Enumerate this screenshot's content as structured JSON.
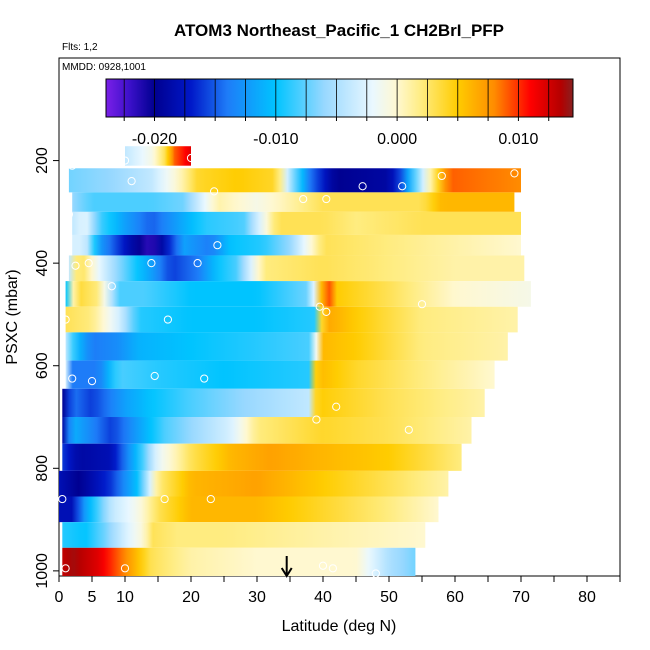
{
  "chart_data": {
    "type": "heatmap",
    "title": "ATOM3 Northeast_Pacific_1 CH2BrI_PFP",
    "flights_label": "Flts: 1,2",
    "dates_label": "MMDD: 0928,1001",
    "xlabel": "Latitude (deg N)",
    "ylabel": "PSXC (mbar)",
    "xlim": [
      0,
      85
    ],
    "ylim": [
      1010,
      0
    ],
    "x_ticks": [
      0,
      5,
      10,
      20,
      30,
      40,
      50,
      60,
      70,
      80
    ],
    "x_minor_ticks": [
      15,
      25,
      35,
      45,
      55,
      65,
      75,
      85
    ],
    "y_ticks": [
      200,
      400,
      600,
      800,
      1000
    ],
    "colorbar": {
      "range": [
        -0.024,
        0.0145
      ],
      "ticks": [
        -0.02,
        -0.01,
        0.0,
        0.01
      ],
      "tick_labels": [
        "-0.020",
        "-0.010",
        "0.000",
        "0.010"
      ],
      "minor_ticks": [
        -0.015,
        -0.005,
        0.005
      ],
      "stops": [
        {
          "v": -0.024,
          "c": "#7a20e8"
        },
        {
          "v": -0.022,
          "c": "#3a10c8"
        },
        {
          "v": -0.02,
          "c": "#000090"
        },
        {
          "v": -0.017,
          "c": "#0018c8"
        },
        {
          "v": -0.014,
          "c": "#1e7cf8"
        },
        {
          "v": -0.01,
          "c": "#00c4ff"
        },
        {
          "v": -0.006,
          "c": "#98d8ff"
        },
        {
          "v": -0.002,
          "c": "#eaf8ff"
        },
        {
          "v": 0.0,
          "c": "#fff8d0"
        },
        {
          "v": 0.002,
          "c": "#ffec80"
        },
        {
          "v": 0.005,
          "c": "#ffcc00"
        },
        {
          "v": 0.008,
          "c": "#ff8c00"
        },
        {
          "v": 0.011,
          "c": "#ff0000"
        },
        {
          "v": 0.0135,
          "c": "#b40000"
        },
        {
          "v": 0.0145,
          "c": "#882020"
        }
      ]
    },
    "rows": [
      {
        "p_top": 172,
        "p_bot": 210,
        "x_min": 10,
        "x_max": 20,
        "knots": [
          [
            10,
            -0.004
          ],
          [
            14,
            -0.001
          ],
          [
            16,
            0.003
          ],
          [
            17.5,
            0.009
          ],
          [
            20,
            0.012
          ]
        ]
      },
      {
        "p_top": 215,
        "p_bot": 262,
        "x_min": 1.5,
        "x_max": 70,
        "knots": [
          [
            1.5,
            -0.007
          ],
          [
            8,
            -0.006
          ],
          [
            14,
            -0.004
          ],
          [
            18,
            0.0
          ],
          [
            21,
            0.004
          ],
          [
            27,
            0.005
          ],
          [
            33,
            0.004
          ],
          [
            35,
            -0.005
          ],
          [
            38,
            -0.014
          ],
          [
            42,
            -0.02
          ],
          [
            50,
            -0.019
          ],
          [
            52,
            -0.015
          ],
          [
            56,
            0.0
          ],
          [
            59,
            0.009
          ],
          [
            70,
            0.008
          ]
        ]
      },
      {
        "p_top": 262,
        "p_bot": 300,
        "x_min": 2,
        "x_max": 69,
        "knots": [
          [
            2,
            -0.006
          ],
          [
            5,
            -0.008
          ],
          [
            9,
            -0.008
          ],
          [
            14,
            -0.008
          ],
          [
            19,
            -0.007
          ],
          [
            24,
            0.001
          ],
          [
            30,
            -0.001
          ],
          [
            40,
            0.003
          ],
          [
            55,
            0.003
          ],
          [
            58,
            0.006
          ],
          [
            69,
            0.006
          ]
        ]
      },
      {
        "p_top": 300,
        "p_bot": 345,
        "x_min": 2,
        "x_max": 70,
        "knots": [
          [
            2,
            -0.004
          ],
          [
            4,
            -0.002
          ],
          [
            6,
            -0.008
          ],
          [
            10,
            -0.012
          ],
          [
            14,
            -0.015
          ],
          [
            18,
            -0.012
          ],
          [
            22,
            -0.009
          ],
          [
            28,
            -0.008
          ],
          [
            33,
            0.003
          ],
          [
            40,
            0.003
          ],
          [
            45,
            0.002
          ],
          [
            55,
            0.003
          ],
          [
            70,
            0.003
          ]
        ]
      },
      {
        "p_top": 345,
        "p_bot": 385,
        "x_min": 2,
        "x_max": 70,
        "knots": [
          [
            2,
            -0.003
          ],
          [
            4,
            -0.003
          ],
          [
            6,
            -0.012
          ],
          [
            9,
            -0.016
          ],
          [
            12,
            -0.02
          ],
          [
            14,
            -0.022
          ],
          [
            16,
            -0.018
          ],
          [
            19,
            -0.012
          ],
          [
            23,
            -0.014
          ],
          [
            26,
            -0.01
          ],
          [
            31,
            -0.009
          ],
          [
            35,
            -0.006
          ],
          [
            40,
            0.003
          ],
          [
            50,
            0.002
          ],
          [
            60,
            0.001
          ],
          [
            70,
            0.0
          ]
        ]
      },
      {
        "p_top": 385,
        "p_bot": 435,
        "x_min": 1.5,
        "x_max": 70.5,
        "knots": [
          [
            1.5,
            -0.004
          ],
          [
            3,
            0.004
          ],
          [
            6,
            -0.002
          ],
          [
            8,
            -0.005
          ],
          [
            12,
            -0.01
          ],
          [
            14,
            -0.012
          ],
          [
            17,
            -0.016
          ],
          [
            21,
            -0.014
          ],
          [
            24,
            -0.01
          ],
          [
            27,
            -0.008
          ],
          [
            31,
            0.002
          ],
          [
            40,
            0.003
          ],
          [
            50,
            0.002
          ],
          [
            60,
            0.001
          ],
          [
            70.5,
            0.001
          ]
        ]
      },
      {
        "p_top": 435,
        "p_bot": 485,
        "x_min": 1,
        "x_max": 71.5,
        "knots": [
          [
            1,
            -0.01
          ],
          [
            2.5,
            0.004
          ],
          [
            6,
            0.002
          ],
          [
            9,
            -0.008
          ],
          [
            13,
            -0.008
          ],
          [
            20,
            -0.01
          ],
          [
            30,
            -0.01
          ],
          [
            38,
            -0.007
          ],
          [
            39.5,
            0.004
          ],
          [
            40.5,
            0.011
          ],
          [
            42,
            0.005
          ],
          [
            50,
            0.003
          ],
          [
            60,
            0.0
          ],
          [
            71.5,
            -0.001
          ]
        ]
      },
      {
        "p_top": 485,
        "p_bot": 535,
        "x_min": 1,
        "x_max": 69.5,
        "knots": [
          [
            1,
            0.003
          ],
          [
            5,
            0.002
          ],
          [
            9,
            -0.003
          ],
          [
            12,
            -0.009
          ],
          [
            20,
            -0.01
          ],
          [
            30,
            -0.01
          ],
          [
            39,
            -0.009
          ],
          [
            40,
            0.007
          ],
          [
            45,
            0.005
          ],
          [
            55,
            0.002
          ],
          [
            69.5,
            0.001
          ]
        ]
      },
      {
        "p_top": 535,
        "p_bot": 590,
        "x_min": 1,
        "x_max": 68,
        "knots": [
          [
            1,
            -0.004
          ],
          [
            2.5,
            -0.01
          ],
          [
            5,
            -0.014
          ],
          [
            9,
            -0.013
          ],
          [
            12,
            -0.011
          ],
          [
            20,
            -0.01
          ],
          [
            30,
            -0.009
          ],
          [
            38.5,
            -0.008
          ],
          [
            39.5,
            0.006
          ],
          [
            45,
            0.005
          ],
          [
            55,
            0.002
          ],
          [
            68,
            0.001
          ]
        ]
      },
      {
        "p_top": 590,
        "p_bot": 645,
        "x_min": 1,
        "x_max": 66,
        "knots": [
          [
            1,
            -0.003
          ],
          [
            2,
            -0.014
          ],
          [
            6,
            -0.014
          ],
          [
            9,
            -0.008
          ],
          [
            15,
            -0.009
          ],
          [
            25,
            -0.01
          ],
          [
            38,
            -0.009
          ],
          [
            39,
            0.006
          ],
          [
            45,
            0.004
          ],
          [
            55,
            0.002
          ],
          [
            66,
            0.0
          ]
        ]
      },
      {
        "p_top": 645,
        "p_bot": 700,
        "x_min": 0.5,
        "x_max": 64.5,
        "knots": [
          [
            0.5,
            -0.02
          ],
          [
            2,
            -0.014
          ],
          [
            5,
            -0.016
          ],
          [
            10,
            -0.012
          ],
          [
            14,
            -0.01
          ],
          [
            20,
            -0.008
          ],
          [
            28,
            -0.006
          ],
          [
            38,
            -0.004
          ],
          [
            39,
            0.005
          ],
          [
            50,
            0.003
          ],
          [
            64.5,
            0.001
          ]
        ]
      },
      {
        "p_top": 700,
        "p_bot": 752,
        "x_min": 0.5,
        "x_max": 62.5,
        "knots": [
          [
            0.5,
            -0.019
          ],
          [
            2,
            -0.011
          ],
          [
            8,
            -0.016
          ],
          [
            12,
            -0.012
          ],
          [
            16,
            -0.008
          ],
          [
            20,
            -0.006
          ],
          [
            26,
            -0.003
          ],
          [
            30,
            0.002
          ],
          [
            40,
            0.004
          ],
          [
            50,
            0.003
          ],
          [
            62.5,
            0.001
          ]
        ]
      },
      {
        "p_top": 752,
        "p_bot": 805,
        "x_min": 0.5,
        "x_max": 61,
        "knots": [
          [
            0.5,
            -0.016
          ],
          [
            3,
            -0.019
          ],
          [
            8,
            -0.018
          ],
          [
            12,
            -0.01
          ],
          [
            15,
            -0.002
          ],
          [
            20,
            0.003
          ],
          [
            26,
            0.006
          ],
          [
            32,
            0.007
          ],
          [
            40,
            0.006
          ],
          [
            50,
            0.005
          ],
          [
            61,
            0.002
          ]
        ]
      },
      {
        "p_top": 805,
        "p_bot": 855,
        "x_min": 0,
        "x_max": 59,
        "knots": [
          [
            0,
            -0.018
          ],
          [
            3,
            -0.02
          ],
          [
            8,
            -0.016
          ],
          [
            12,
            -0.01
          ],
          [
            15,
            0.002
          ],
          [
            20,
            0.006
          ],
          [
            30,
            0.007
          ],
          [
            40,
            0.005
          ],
          [
            50,
            0.003
          ],
          [
            59,
            0.001
          ]
        ]
      },
      {
        "p_top": 855,
        "p_bot": 905,
        "x_min": 0,
        "x_max": 57.5,
        "knots": [
          [
            0,
            -0.018
          ],
          [
            2,
            -0.018
          ],
          [
            4,
            -0.012
          ],
          [
            8,
            -0.004
          ],
          [
            12,
            -0.001
          ],
          [
            15,
            0.003
          ],
          [
            20,
            0.006
          ],
          [
            30,
            0.006
          ],
          [
            40,
            0.004
          ],
          [
            50,
            0.002
          ],
          [
            57.5,
            0.0
          ]
        ]
      },
      {
        "p_top": 905,
        "p_bot": 955,
        "x_min": 0.5,
        "x_max": 55.5,
        "knots": [
          [
            0.5,
            -0.009
          ],
          [
            4,
            -0.01
          ],
          [
            7,
            -0.007
          ],
          [
            10,
            -0.003
          ],
          [
            13,
            0.0
          ],
          [
            14,
            0.003
          ],
          [
            18,
            0.002
          ],
          [
            25,
            0.002
          ],
          [
            40,
            0.001
          ],
          [
            55.5,
            0.0
          ]
        ]
      },
      {
        "p_top": 955,
        "p_bot": 1010,
        "x_min": 0.5,
        "x_max": 54,
        "knots": [
          [
            0.5,
            0.013
          ],
          [
            2,
            0.014
          ],
          [
            6,
            0.012
          ],
          [
            10,
            0.008
          ],
          [
            14,
            0.003
          ],
          [
            20,
            0.001
          ],
          [
            30,
            0.0
          ],
          [
            45,
            0.0
          ],
          [
            50,
            -0.005
          ],
          [
            54,
            -0.007
          ]
        ]
      }
    ],
    "points": [
      [
        10,
        200
      ],
      [
        20,
        195
      ],
      [
        2,
        210
      ],
      [
        11,
        240
      ],
      [
        58,
        230
      ],
      [
        69,
        225
      ],
      [
        46,
        250
      ],
      [
        52,
        250
      ],
      [
        23.5,
        260
      ],
      [
        37,
        275
      ],
      [
        40.5,
        275
      ],
      [
        1.5,
        305
      ],
      [
        24,
        365
      ],
      [
        2.5,
        405
      ],
      [
        4.5,
        400
      ],
      [
        14,
        400
      ],
      [
        21,
        400
      ],
      [
        8,
        445
      ],
      [
        39.5,
        485
      ],
      [
        40.5,
        495
      ],
      [
        55,
        480
      ],
      [
        16.5,
        510
      ],
      [
        1,
        510
      ],
      [
        2,
        625
      ],
      [
        5,
        630
      ],
      [
        14.5,
        620
      ],
      [
        22,
        625
      ],
      [
        42,
        680
      ],
      [
        39,
        705
      ],
      [
        53,
        725
      ],
      [
        0.5,
        860
      ],
      [
        16,
        860
      ],
      [
        23,
        860
      ],
      [
        1,
        995
      ],
      [
        10,
        995
      ],
      [
        40,
        990
      ],
      [
        41.5,
        995
      ],
      [
        48,
        1005
      ]
    ],
    "arrow_x": 34.5
  }
}
